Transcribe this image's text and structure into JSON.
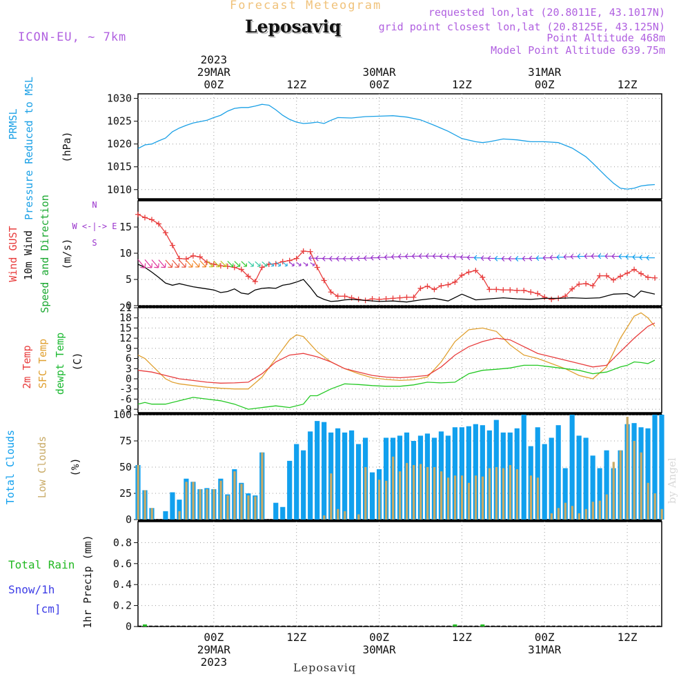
{
  "header": {
    "subtitle": "Forecast Meteogram",
    "station": "Leposaviq",
    "model": "ICON-EU, ~ 7km",
    "requested": "requested lon,lat (20.8011E, 43.1017N)",
    "grid_point": "grid point closest lon,lat (20.8125E, 43.125N)",
    "point_altitude": "Point Altitude 468m",
    "model_altitude": "Model Point Altitude 639.75m",
    "footer_station": "Leposaviq",
    "watermark": "by Angel"
  },
  "time_axis": {
    "ticks": [
      {
        "hour": 0,
        "label": "00Z",
        "date": "29MAR",
        "year": "2023"
      },
      {
        "hour": 12,
        "label": "12Z",
        "date": "",
        "year": ""
      },
      {
        "hour": 24,
        "label": "00Z",
        "date": "30MAR",
        "year": ""
      },
      {
        "hour": 36,
        "label": "12Z",
        "date": "",
        "year": ""
      },
      {
        "hour": 48,
        "label": "00Z",
        "date": "31MAR",
        "year": ""
      },
      {
        "hour": 60,
        "label": "12Z",
        "date": "",
        "year": ""
      }
    ],
    "range_hours": [
      -11,
      65
    ]
  },
  "colors": {
    "pressure": "#1aa0e6",
    "gust": "#e83c3c",
    "wind10m": "#000000",
    "temp2m": "#e83c3c",
    "sfc": "#e0a030",
    "dewpt": "#22c822",
    "total_clouds": "#11a0ee",
    "low_clouds": "#c8aa66",
    "rain": "#22b822",
    "snow": "#3c3ce6",
    "wind_dir": "#9933cc"
  },
  "panel_labels": {
    "pressure": [
      "PRMSL",
      "Pressure Reduced to MSL",
      "(hPa)"
    ],
    "wind": [
      "Wind GUST",
      "10m Wind",
      "Speed and Direction",
      "(m/s)"
    ],
    "compass": [
      "N",
      "W <-|-> E",
      "S"
    ],
    "temp": [
      "2m Temp",
      "SFC Temp",
      "dewpt Temp",
      "(C)"
    ],
    "clouds": [
      "Total Clouds",
      "Low Clouds",
      "(%)"
    ],
    "precip": [
      "Total Rain",
      "Snow/1h",
      "[cm]",
      "1hr Precip (mm)"
    ]
  },
  "chart_data": [
    {
      "type": "line",
      "title": "PRMSL Pressure Reduced to MSL",
      "ylabel": "(hPa)",
      "ylim": [
        1008,
        1031
      ],
      "yticks": [
        1010,
        1015,
        1020,
        1025,
        1030
      ],
      "series": [
        {
          "name": "PRMSL",
          "x": [
            -11,
            -10,
            -9,
            -8,
            -7,
            -6,
            -5,
            -4,
            -3,
            -1,
            0,
            1,
            2,
            3,
            4,
            5,
            6,
            7,
            8,
            9,
            10,
            11,
            12,
            13,
            14,
            15,
            16,
            17,
            18,
            20,
            22,
            24,
            26,
            28,
            30,
            32,
            34,
            36,
            38,
            39,
            40,
            42,
            44,
            46,
            48,
            50,
            52,
            54,
            55,
            56,
            57,
            58,
            59,
            60,
            61,
            62,
            63,
            64
          ],
          "values": [
            1019,
            1019.8,
            1020,
            1020.7,
            1021.3,
            1022.7,
            1023.5,
            1024.1,
            1024.6,
            1025.2,
            1025.8,
            1026.3,
            1027.2,
            1027.8,
            1028,
            1028,
            1028.3,
            1028.7,
            1028.5,
            1027.5,
            1026.3,
            1025.4,
            1024.8,
            1024.5,
            1024.6,
            1024.8,
            1024.5,
            1025.2,
            1025.8,
            1025.7,
            1026,
            1026.1,
            1026.2,
            1025.9,
            1025.3,
            1024.1,
            1022.8,
            1021.2,
            1020.5,
            1020.3,
            1020.5,
            1021.1,
            1020.9,
            1020.5,
            1020.5,
            1020.3,
            1019.1,
            1017.2,
            1015.8,
            1014.3,
            1012.8,
            1011.4,
            1010.3,
            1010.1,
            1010.3,
            1010.8,
            1011,
            1011.1
          ]
        }
      ]
    },
    {
      "type": "line",
      "title": "Wind GUST / 10m Wind Speed and Direction",
      "ylabel": "(m/s)",
      "ylim": [
        0,
        20
      ],
      "yticks": [
        0,
        5,
        10,
        15
      ],
      "series": [
        {
          "name": "Wind GUST",
          "x": [
            -11,
            -10,
            -9,
            -8,
            -7,
            -6,
            -5,
            -4,
            -3,
            -2,
            -1,
            0,
            1,
            2,
            3,
            4,
            5,
            6,
            7,
            8,
            9,
            10,
            11,
            12,
            13,
            14,
            15,
            16,
            17,
            18,
            19,
            20,
            21,
            22,
            23,
            24,
            25,
            26,
            27,
            28,
            29,
            30,
            31,
            32,
            33,
            34,
            35,
            36,
            37,
            38,
            39,
            40,
            41,
            42,
            43,
            44,
            45,
            46,
            47,
            48,
            49,
            50,
            51,
            52,
            53,
            54,
            55,
            56,
            57,
            58,
            59,
            60,
            61,
            62,
            63,
            64
          ],
          "values": [
            17.4,
            16.8,
            16.4,
            15.6,
            13.9,
            11.5,
            9,
            8.9,
            9.5,
            9.3,
            8.3,
            7.9,
            7.6,
            7.5,
            7.3,
            6.9,
            5.6,
            4.6,
            7.3,
            7.9,
            8,
            8.4,
            8.6,
            9,
            10.4,
            10.3,
            7.3,
            4.8,
            2.6,
            1.8,
            1.8,
            1.5,
            1.2,
            1,
            1.3,
            1.2,
            1.3,
            1.4,
            1.5,
            1.6,
            1.6,
            3.3,
            3.7,
            3.1,
            3.8,
            4,
            4.5,
            5.8,
            6.4,
            6.7,
            5.4,
            3.1,
            3.1,
            3,
            3,
            2.9,
            2.9,
            2.6,
            2.3,
            1.6,
            1.2,
            1.4,
            1.8,
            3.2,
            4.1,
            4.2,
            3.8,
            5.7,
            5.7,
            4.9,
            5.6,
            6.2,
            6.9,
            6.1,
            5.4,
            5.3
          ]
        },
        {
          "name": "10m Wind",
          "x": [
            -11,
            -10,
            -9,
            -8,
            -7,
            -6,
            -5,
            -4,
            -3,
            -2,
            -1,
            0,
            1,
            2,
            3,
            4,
            5,
            6,
            7,
            8,
            9,
            10,
            11,
            12,
            13,
            14,
            15,
            16,
            17,
            18,
            19,
            20,
            22,
            24,
            26,
            28,
            30,
            32,
            34,
            36,
            38,
            40,
            42,
            44,
            46,
            48,
            50,
            52,
            54,
            56,
            58,
            60,
            61,
            62,
            63,
            64
          ],
          "values": [
            7.9,
            7.3,
            6.4,
            5.4,
            4.3,
            3.9,
            4.2,
            3.9,
            3.6,
            3.4,
            3.2,
            3,
            2.5,
            2.7,
            3.2,
            2.4,
            2.2,
            3,
            3.3,
            3.4,
            3.3,
            3.9,
            4.1,
            4.5,
            5,
            3.5,
            1.8,
            1.2,
            0.8,
            0.9,
            1.1,
            1.2,
            1,
            0.8,
            0.9,
            0.7,
            1.1,
            1.4,
            0.9,
            2.2,
            1.1,
            1.3,
            1.5,
            1.3,
            1.2,
            1.4,
            1.4,
            1.5,
            1.4,
            1.5,
            2.2,
            2.3,
            1.6,
            2.8,
            2.5,
            2.2
          ]
        }
      ]
    },
    {
      "type": "line",
      "title": "2m Temp / SFC Temp / dewpt Temp",
      "ylabel": "(C)",
      "ylim": [
        -10,
        21
      ],
      "yticks": [
        -9,
        -6,
        -3,
        0,
        3,
        6,
        9,
        12,
        15,
        18,
        21
      ],
      "series": [
        {
          "name": "2m Temp",
          "x": [
            -11,
            -9,
            -7,
            -5,
            -3,
            -1,
            1,
            3,
            5,
            7,
            9,
            11,
            13,
            15,
            17,
            19,
            21,
            23,
            25,
            27,
            29,
            31,
            33,
            35,
            37,
            39,
            41,
            43,
            45,
            47,
            49,
            51,
            53,
            55,
            57,
            59,
            61,
            63,
            64
          ],
          "values": [
            2.5,
            2,
            1,
            0,
            -0.5,
            -1,
            -1.3,
            -1.2,
            -1,
            1.5,
            5,
            7,
            7.5,
            6.5,
            5,
            3,
            2,
            1,
            0.5,
            0.3,
            0.6,
            1,
            3.5,
            7,
            9.5,
            11,
            12,
            11.5,
            9.5,
            7.5,
            6.5,
            5.5,
            4.5,
            3.5,
            4,
            8,
            12,
            15.5,
            16.5
          ]
        },
        {
          "name": "SFC Temp",
          "x": [
            -11,
            -10,
            -9,
            -8,
            -7,
            -6,
            -5,
            -3,
            -1,
            1,
            3,
            5,
            7,
            9,
            11,
            12,
            13,
            15,
            17,
            19,
            21,
            23,
            25,
            27,
            29,
            31,
            33,
            35,
            37,
            39,
            41,
            43,
            45,
            47,
            49,
            51,
            53,
            55,
            57,
            59,
            61,
            62,
            63,
            64
          ],
          "values": [
            7,
            6,
            4,
            2,
            0,
            -1,
            -1.5,
            -2,
            -2.5,
            -2.8,
            -3,
            -3,
            0.5,
            6,
            11.5,
            13,
            12.5,
            8,
            5,
            3,
            1.5,
            0.3,
            -0.2,
            -0.5,
            -0.3,
            0.5,
            5,
            11,
            14.5,
            15,
            14,
            10,
            7,
            6,
            4.5,
            3,
            1,
            0,
            3.5,
            12,
            18.5,
            19.5,
            18,
            15.5
          ]
        },
        {
          "name": "dewpt Temp",
          "x": [
            -11,
            -10,
            -9,
            -7,
            -5,
            -3,
            -1,
            1,
            3,
            5,
            7,
            9,
            11,
            13,
            14,
            15,
            17,
            19,
            21,
            23,
            25,
            27,
            29,
            31,
            33,
            35,
            37,
            39,
            41,
            43,
            45,
            47,
            49,
            51,
            53,
            55,
            57,
            59,
            60,
            61,
            62,
            63,
            64
          ],
          "values": [
            -7.5,
            -7,
            -7.5,
            -7.5,
            -6.5,
            -5.5,
            -6,
            -6.5,
            -7.5,
            -9,
            -8.5,
            -8,
            -8.5,
            -7.5,
            -5,
            -5,
            -3,
            -1.5,
            -1.7,
            -2,
            -2.2,
            -2.2,
            -1.8,
            -1,
            -1.2,
            -1,
            1.5,
            2.5,
            2.8,
            3.2,
            4,
            4,
            3.5,
            3,
            2.5,
            1.5,
            2,
            3.5,
            4,
            5,
            4.8,
            4.5,
            5.5
          ]
        }
      ]
    },
    {
      "type": "bar",
      "title": "Total Clouds / Low Clouds",
      "ylabel": "(%)",
      "ylim": [
        0,
        100
      ],
      "yticks": [
        0,
        25,
        50,
        75,
        100
      ],
      "x": [
        -11,
        -10,
        -9,
        -8,
        -7,
        -6,
        -5,
        -4,
        -3,
        -2,
        -1,
        0,
        1,
        2,
        3,
        4,
        5,
        6,
        7,
        8,
        9,
        10,
        11,
        12,
        13,
        14,
        15,
        16,
        17,
        18,
        19,
        20,
        21,
        22,
        23,
        24,
        25,
        26,
        27,
        28,
        29,
        30,
        31,
        32,
        33,
        34,
        35,
        36,
        37,
        38,
        39,
        40,
        41,
        42,
        43,
        44,
        45,
        46,
        47,
        48,
        49,
        50,
        51,
        52,
        53,
        54,
        55,
        56,
        57,
        58,
        59,
        60,
        61,
        62,
        63,
        64,
        65
      ],
      "series": [
        {
          "name": "Total Clouds",
          "values": [
            52,
            28,
            11,
            0,
            8,
            26,
            19,
            39,
            36,
            29,
            30,
            29,
            39,
            24,
            48,
            35,
            25,
            23,
            64,
            0,
            16,
            12,
            56,
            72,
            66,
            84,
            94,
            93,
            83,
            87,
            83,
            85,
            72,
            78,
            45,
            48,
            78,
            78,
            80,
            83,
            75,
            80,
            82,
            78,
            84,
            80,
            88,
            88,
            89,
            91,
            90,
            85,
            95,
            83,
            83,
            87,
            100,
            70,
            88,
            72,
            78,
            90,
            49,
            100,
            80,
            78,
            61,
            49,
            66,
            49,
            66,
            91,
            92,
            88,
            87,
            100,
            100
          ],
          "labels_unused": []
        },
        {
          "name": "Low Clouds",
          "values": [
            52,
            28,
            11,
            0,
            0,
            0,
            8,
            36,
            36,
            29,
            29,
            29,
            37,
            23,
            46,
            34,
            23,
            22,
            64,
            0,
            0,
            0,
            0,
            0,
            0,
            0,
            0,
            4,
            44,
            10,
            8,
            0,
            5,
            50,
            0,
            38,
            37,
            60,
            46,
            54,
            52,
            53,
            50,
            50,
            46,
            40,
            42,
            42,
            35,
            42,
            41,
            49,
            50,
            49,
            52,
            48,
            0,
            42,
            40,
            0,
            6,
            11,
            16,
            13,
            6,
            10,
            17,
            18,
            24,
            55,
            66,
            98,
            75,
            64,
            35,
            25,
            10
          ]
        }
      ]
    },
    {
      "type": "bar",
      "title": "1hr Precip",
      "ylabel": "1hr Precip (mm)",
      "ylim": [
        0,
        1
      ],
      "yticks": [
        0,
        0.2,
        0.4,
        0.6,
        0.8
      ],
      "x": [
        -10,
        35,
        39
      ],
      "series": [
        {
          "name": "Total Rain",
          "values": [
            0.01,
            0.005,
            0.01
          ]
        }
      ]
    }
  ]
}
